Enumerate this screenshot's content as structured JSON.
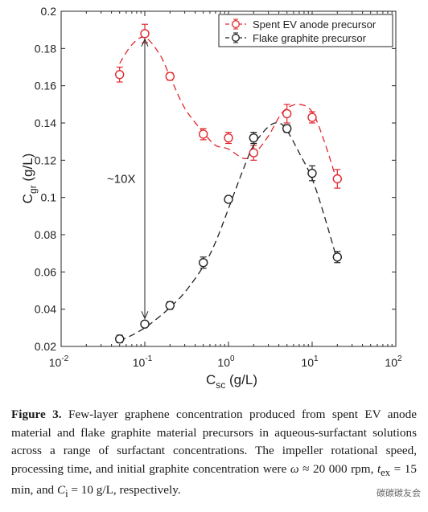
{
  "chart_data": {
    "type": "scatter",
    "xscale": "log",
    "ylim": [
      0.02,
      0.2
    ],
    "xlim": [
      0.01,
      100
    ],
    "ylabel": "C",
    "ylabel_sub": "gr",
    "ylabel_unit": " (g/L)",
    "xlabel": "C",
    "xlabel_sub": "sc",
    "xlabel_unit": " (g/L)",
    "yticks": [
      0.02,
      0.04,
      0.06,
      0.08,
      0.1,
      0.12,
      0.14,
      0.16,
      0.18,
      0.2
    ],
    "ytick_labels": [
      "0.02",
      "0.04",
      "0.06",
      "0.08",
      "0.1",
      "0.12",
      "0.14",
      "0.16",
      "0.18",
      "0.2"
    ],
    "xticks": [
      0.01,
      0.1,
      1,
      10,
      100
    ],
    "xtick_base": "10",
    "xtick_exponents": [
      "-2",
      "-1",
      "0",
      "1",
      "2"
    ],
    "legend_position": "top-right",
    "grid": false,
    "annotation": {
      "text": "~10X",
      "x": 0.1,
      "y_from": 0.035,
      "y_to": 0.185
    },
    "series": [
      {
        "name": "Spent EV anode precursor",
        "color": "#e0282d",
        "marker": "open-circle",
        "x": [
          0.05,
          0.1,
          0.2,
          0.5,
          1,
          2,
          5,
          10,
          20
        ],
        "y": [
          0.166,
          0.188,
          0.165,
          0.134,
          0.132,
          0.124,
          0.145,
          0.143,
          0.11
        ],
        "err": [
          0.004,
          0.005,
          0.002,
          0.003,
          0.003,
          0.004,
          0.005,
          0.003,
          0.005
        ],
        "fit_x": [
          0.05,
          0.07,
          0.1,
          0.15,
          0.2,
          0.3,
          0.5,
          0.7,
          1,
          1.5,
          2,
          3,
          4,
          5,
          7,
          10,
          14,
          20
        ],
        "fit_y": [
          0.172,
          0.182,
          0.186,
          0.177,
          0.165,
          0.148,
          0.135,
          0.128,
          0.126,
          0.121,
          0.123,
          0.133,
          0.143,
          0.148,
          0.15,
          0.146,
          0.13,
          0.108
        ]
      },
      {
        "name": "Flake graphite precursor",
        "color": "#222222",
        "marker": "open-circle",
        "x": [
          0.05,
          0.1,
          0.2,
          0.5,
          1,
          2,
          5,
          10,
          20
        ],
        "y": [
          0.024,
          0.032,
          0.042,
          0.065,
          0.099,
          0.132,
          0.137,
          0.113,
          0.068
        ],
        "err": [
          0.002,
          0.001,
          0.002,
          0.003,
          0.001,
          0.003,
          0.002,
          0.004,
          0.003
        ],
        "fit_x": [
          0.05,
          0.07,
          0.1,
          0.15,
          0.2,
          0.3,
          0.5,
          0.7,
          1,
          1.5,
          2,
          3,
          4,
          5,
          7,
          10,
          14,
          20
        ],
        "fit_y": [
          0.023,
          0.026,
          0.03,
          0.036,
          0.041,
          0.049,
          0.063,
          0.076,
          0.094,
          0.115,
          0.128,
          0.138,
          0.14,
          0.136,
          0.124,
          0.11,
          0.09,
          0.066
        ]
      }
    ]
  },
  "caption": {
    "label": "Figure 3.",
    "text_1": " Few-layer graphene concentration produced from spent EV anode material and flake graphite material precursors in aqueous-surfactant solutions across a range of surfactant concentrations. The impeller rotational speed, processing time, and initial graphite concentration were ",
    "omega": "ω",
    "text_2": " ≈ 20 000 rpm, ",
    "t": "t",
    "t_sub": "ex",
    "text_3": " = 15 min, and ",
    "c": "C",
    "c_sub": "i",
    "text_4": " = 10 g/L, respectively."
  },
  "watermark": "碳碳碳友会"
}
